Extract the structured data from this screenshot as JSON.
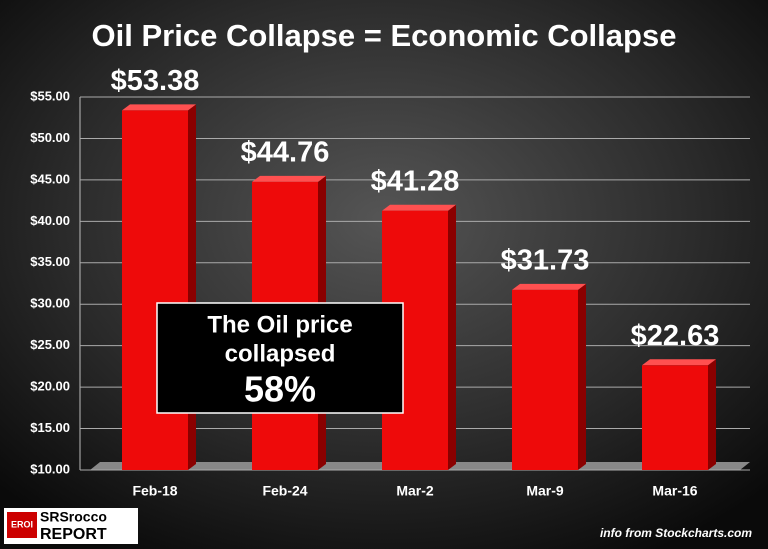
{
  "chart_data": {
    "type": "bar",
    "title": "Oil Price Collapse = Economic Collapse",
    "categories": [
      "Feb-18",
      "Feb-24",
      "Mar-2",
      "Mar-9",
      "Mar-16"
    ],
    "values": [
      53.38,
      44.76,
      41.28,
      31.73,
      22.63
    ],
    "value_labels": [
      "$53.38",
      "$44.76",
      "$41.28",
      "$31.73",
      "$22.63"
    ],
    "color": "#ee0a0a",
    "ylim": [
      10,
      55
    ],
    "yticks": [
      {
        "value": 10,
        "label": "$10.00"
      },
      {
        "value": 15,
        "label": "$15.00"
      },
      {
        "value": 20,
        "label": "$20.00"
      },
      {
        "value": 25,
        "label": "$25.00"
      },
      {
        "value": 30,
        "label": "$30.00"
      },
      {
        "value": 35,
        "label": "$35.00"
      },
      {
        "value": 40,
        "label": "$40.00"
      },
      {
        "value": 45,
        "label": "$45.00"
      },
      {
        "value": 50,
        "label": "$50.00"
      },
      {
        "value": 55,
        "label": "$55.00"
      }
    ],
    "grid": true,
    "annotation": [
      "The Oil price",
      "collapsed",
      "58%"
    ],
    "source": "info from Stockcharts.com",
    "logo": {
      "badge": "EROI",
      "name": "SRSrocco",
      "subname": "REPORT"
    }
  }
}
